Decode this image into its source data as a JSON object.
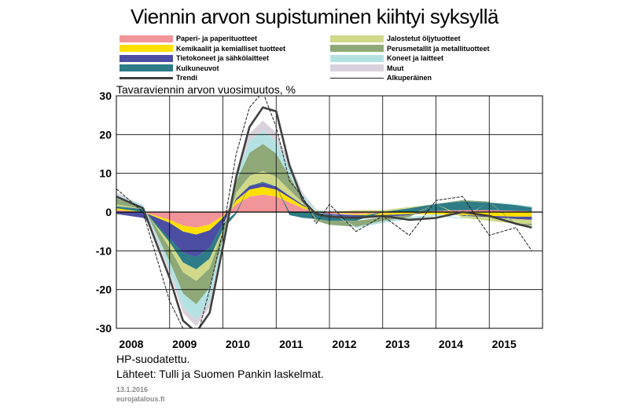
{
  "title": "Viennin arvon supistuminen kiihtyi syksyllä",
  "subtitle": "Tavaraviennin arvon vuosimuutos, %",
  "note": "HP-suodatettu.",
  "source": "Lähteet: Tulli ja Suomen Pankin laskelmat.",
  "date": "13.1.2016",
  "code": "eurojatalous.fi",
  "chart_data": {
    "type": "area",
    "stacked": true,
    "title": "Viennin arvon supistuminen kiihtyi syksyllä",
    "ylabel": "Tavaraviennin arvon vuosimuutos, %",
    "ylim": [
      -30,
      30
    ],
    "yticks": [
      -30,
      -20,
      -10,
      0,
      10,
      20,
      30
    ],
    "xlim": [
      2008,
      2016
    ],
    "xticks": [
      "2008",
      "2009",
      "2010",
      "2011",
      "2012",
      "2013",
      "2014",
      "2015"
    ],
    "grid": true,
    "legend_position": "top",
    "x": [
      2008.0,
      2008.5,
      2009.0,
      2009.25,
      2009.5,
      2009.75,
      2010.0,
      2010.25,
      2010.5,
      2010.75,
      2011.0,
      2011.25,
      2011.5,
      2011.75,
      2012.0,
      2012.5,
      2013.0,
      2013.5,
      2014.0,
      2014.5,
      2015.0,
      2015.5,
      2015.8
    ],
    "series": [
      {
        "name": "Paperi- ja paperituotteet",
        "color": "#f2959b",
        "values": [
          0.5,
          0.0,
          -2.0,
          -3.5,
          -4.0,
          -3.2,
          -1.0,
          2.0,
          4.0,
          4.5,
          4.0,
          2.5,
          1.0,
          0.0,
          -0.5,
          -0.5,
          -0.3,
          0.0,
          0.3,
          0.5,
          0.5,
          0.3,
          0.2
        ]
      },
      {
        "name": "Kemikaalit ja kemialliset tuotteet",
        "color": "#ffe000",
        "values": [
          0.5,
          0.0,
          -0.8,
          -1.5,
          -1.8,
          -1.5,
          -0.5,
          1.0,
          1.8,
          2.0,
          1.8,
          1.2,
          0.6,
          0.2,
          0.0,
          -0.3,
          -0.5,
          -0.5,
          -0.6,
          -0.8,
          -1.0,
          -1.2,
          -1.2
        ]
      },
      {
        "name": "Tietokoneet ja sähkölaitteet",
        "color": "#4b4ea3",
        "values": [
          -0.5,
          -1.5,
          -4.0,
          -5.5,
          -5.8,
          -4.5,
          -1.5,
          0.5,
          1.0,
          1.0,
          0.8,
          0.5,
          0.3,
          0.0,
          -0.3,
          -0.5,
          -0.5,
          -0.3,
          0.0,
          -0.2,
          -0.3,
          -0.6,
          -0.8
        ]
      },
      {
        "name": "Kulkuneuvot",
        "color": "#2e7c87",
        "values": [
          0.5,
          0.8,
          -1.0,
          -2.5,
          -3.2,
          -2.8,
          -1.5,
          -0.5,
          0.0,
          0.3,
          0.0,
          -0.8,
          -1.5,
          -1.8,
          -1.5,
          -1.0,
          0.0,
          1.0,
          1.8,
          2.3,
          2.0,
          1.5,
          1.0
        ]
      },
      {
        "name": "Jalostetut öljytuotteet",
        "color": "#cfd989",
        "values": [
          0.5,
          0.0,
          -1.5,
          -2.5,
          -3.0,
          -2.5,
          -0.5,
          1.5,
          2.5,
          2.8,
          2.5,
          1.5,
          0.5,
          0.0,
          0.0,
          0.5,
          0.5,
          0.3,
          0.0,
          -0.5,
          -1.0,
          -1.2,
          -1.0
        ]
      },
      {
        "name": "Perusmetallit ja metallituotteet",
        "color": "#8fa878",
        "values": [
          1.5,
          0.5,
          -3.5,
          -5.5,
          -6.0,
          -5.0,
          -2.0,
          3.0,
          6.0,
          7.0,
          6.0,
          3.5,
          1.0,
          -0.5,
          -1.0,
          -1.5,
          -1.0,
          -0.5,
          0.0,
          0.3,
          0.2,
          -0.2,
          -0.5
        ]
      },
      {
        "name": "Koneet ja laitteet",
        "color": "#b4e2e3",
        "values": [
          1.0,
          0.5,
          -2.0,
          -3.5,
          -4.0,
          -3.5,
          -1.5,
          1.5,
          3.0,
          3.5,
          3.2,
          2.2,
          1.0,
          0.3,
          0.0,
          -0.3,
          -0.5,
          -0.5,
          -0.4,
          -0.2,
          0.0,
          0.2,
          0.3
        ]
      },
      {
        "name": "Muut",
        "color": "#d9d2dc",
        "values": [
          0.5,
          0.0,
          -1.0,
          -1.5,
          -1.7,
          -1.5,
          -0.5,
          1.0,
          2.0,
          2.5,
          2.2,
          1.5,
          0.6,
          0.2,
          0.0,
          0.0,
          0.0,
          0.0,
          0.0,
          0.0,
          0.0,
          0.0,
          0.0
        ]
      },
      {
        "name": "Trendi",
        "color": "#404040",
        "kind": "line",
        "values": [
          4.0,
          1.0,
          -17.0,
          -28.0,
          -31.0,
          -26.0,
          -9.0,
          9.0,
          22.0,
          27.0,
          26.0,
          12.0,
          3.0,
          -0.5,
          -1.2,
          -1.5,
          -1.0,
          -2.0,
          -1.5,
          0.0,
          -1.0,
          -3.0,
          -4.0
        ]
      },
      {
        "name": "Alkuperäinen",
        "color": "#202020",
        "kind": "line-thin",
        "values": [
          6.0,
          0.0,
          -23.0,
          -30.0,
          -33.0,
          -20.0,
          -5.0,
          15.0,
          27.0,
          31.0,
          22.0,
          8.0,
          4.0,
          -3.0,
          2.0,
          -5.0,
          -1.0,
          -6.0,
          3.0,
          4.0,
          -6.0,
          -4.0,
          -10.0
        ]
      }
    ]
  }
}
